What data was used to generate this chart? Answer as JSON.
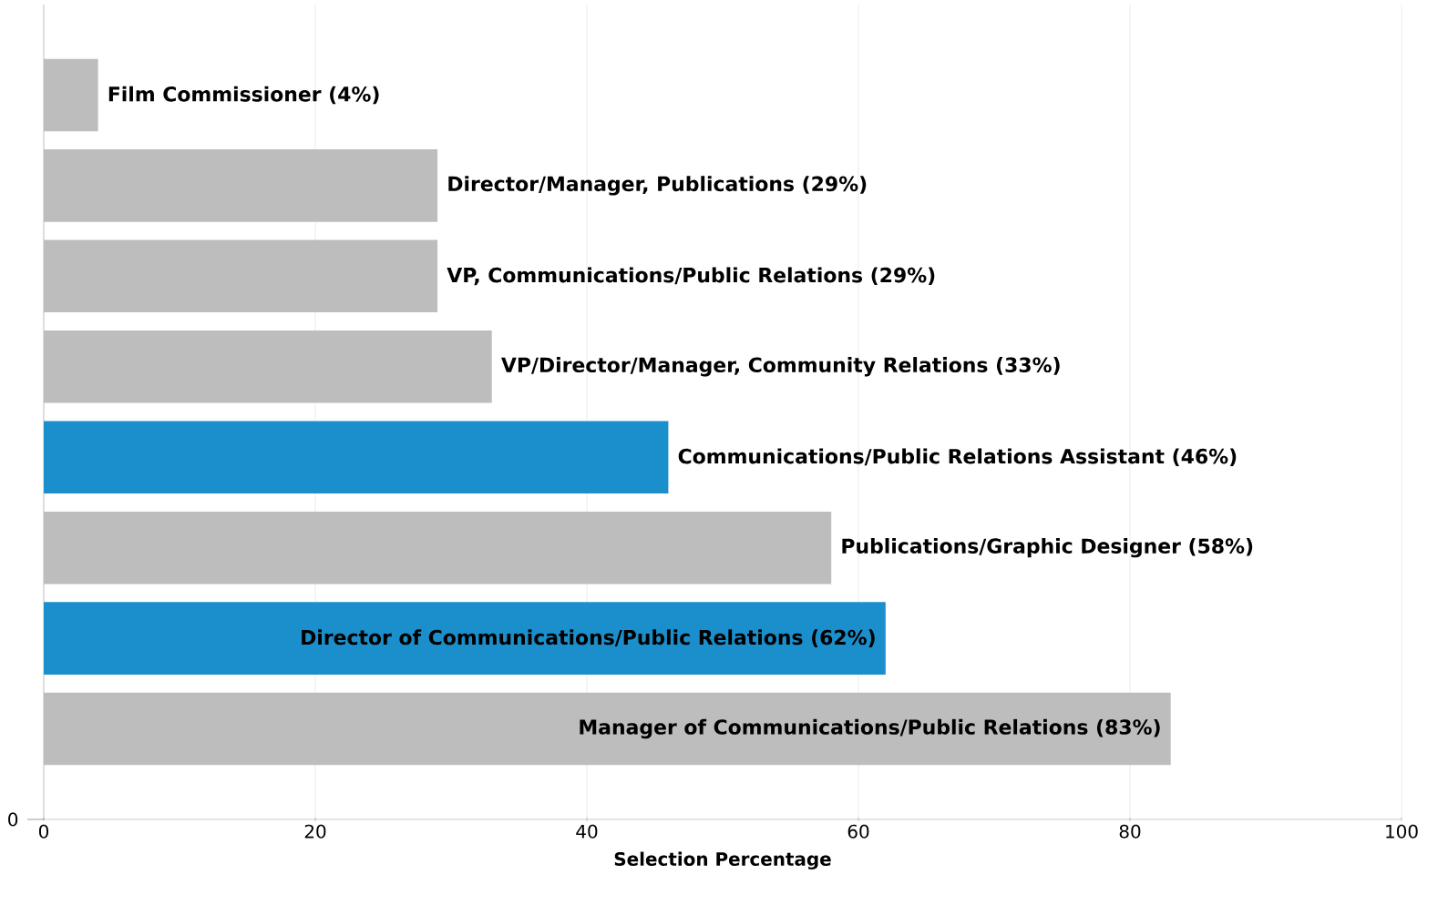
{
  "chart_data": {
    "type": "bar",
    "orientation": "horizontal",
    "categories": [
      "Film Commissioner (4%)",
      "Director/Manager, Publications (29%)",
      "VP, Communications/Public Relations (29%)",
      "VP/Director/Manager, Community Relations (33%)",
      "Communications/Public Relations Assistant (46%)",
      "Publications/Graphic Designer (58%)",
      "Director of Communications/Public Relations (62%)",
      "Manager of Communications/Public Relations (83%)"
    ],
    "values": [
      4,
      29,
      29,
      33,
      46,
      58,
      62,
      83
    ],
    "colors": [
      "#bdbdbd",
      "#bdbdbd",
      "#bdbdbd",
      "#bdbdbd",
      "#1b8fcb",
      "#bdbdbd",
      "#1b8fcb",
      "#bdbdbd"
    ],
    "xlim": [
      0,
      100
    ],
    "xticks": [
      0,
      20,
      40,
      60,
      80,
      100
    ],
    "xlabel": "Selection Percentage",
    "grid": "x",
    "annotations": [
      "0"
    ]
  }
}
